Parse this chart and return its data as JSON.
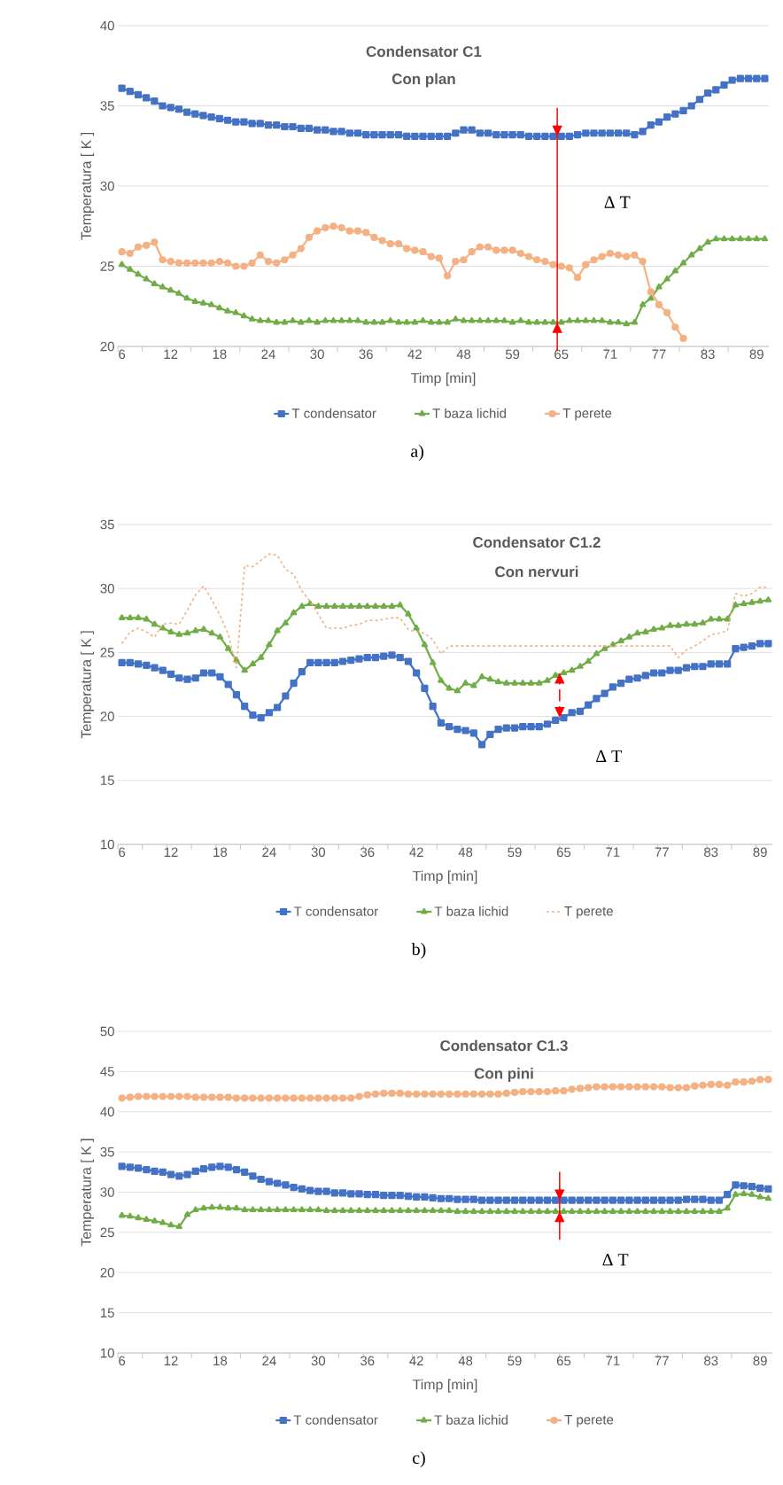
{
  "chart_data": [
    {
      "type": "line",
      "title": "Condensator C1",
      "subtitle": "Con plan",
      "xlabel": "Timp [min]",
      "ylabel": "Temperatura [ K ]",
      "categories": [
        "6",
        null,
        null,
        null,
        null,
        null,
        "12",
        null,
        null,
        null,
        null,
        null,
        "18",
        null,
        null,
        null,
        null,
        null,
        "24",
        null,
        null,
        null,
        null,
        null,
        "30",
        null,
        null,
        null,
        null,
        null,
        "36",
        null,
        null,
        null,
        null,
        null,
        "42",
        null,
        null,
        null,
        null,
        null,
        "48",
        null,
        null,
        null,
        null,
        null,
        "59",
        null,
        null,
        null,
        null,
        null,
        "65",
        null,
        null,
        null,
        null,
        null,
        "71",
        null,
        null,
        null,
        null,
        null,
        "77",
        null,
        null,
        null,
        null,
        null,
        "83",
        null,
        null,
        null,
        null,
        null,
        "89",
        null
      ],
      "ylim": [
        20,
        40
      ],
      "yticks": [
        20,
        25,
        30,
        35,
        40
      ],
      "grid": "y",
      "legend": "bottom",
      "series": [
        {
          "name": "T condensator",
          "color": "#4472c4",
          "marker": "square",
          "values": [
            36.1,
            35.9,
            35.7,
            35.5,
            35.3,
            35.0,
            34.9,
            34.8,
            34.6,
            34.5,
            34.4,
            34.3,
            34.2,
            34.1,
            34.0,
            34.0,
            33.9,
            33.9,
            33.8,
            33.8,
            33.7,
            33.7,
            33.6,
            33.6,
            33.5,
            33.5,
            33.4,
            33.4,
            33.3,
            33.3,
            33.2,
            33.2,
            33.2,
            33.2,
            33.2,
            33.1,
            33.1,
            33.1,
            33.1,
            33.1,
            33.1,
            33.3,
            33.5,
            33.5,
            33.3,
            33.3,
            33.2,
            33.2,
            33.2,
            33.2,
            33.1,
            33.1,
            33.1,
            33.1,
            33.1,
            33.1,
            33.2,
            33.3,
            33.3,
            33.3,
            33.3,
            33.3,
            33.3,
            33.2,
            33.4,
            33.8,
            34.0,
            34.3,
            34.5,
            34.7,
            35.0,
            35.4,
            35.8,
            36.0,
            36.3,
            36.6,
            36.7,
            36.7,
            36.7,
            36.7
          ]
        },
        {
          "name": "T baza lichid",
          "color": "#70ad47",
          "marker": "triangle",
          "values": [
            25.1,
            24.8,
            24.5,
            24.2,
            23.9,
            23.7,
            23.5,
            23.3,
            23.0,
            22.8,
            22.7,
            22.6,
            22.4,
            22.2,
            22.1,
            21.9,
            21.7,
            21.6,
            21.6,
            21.5,
            21.5,
            21.6,
            21.5,
            21.6,
            21.5,
            21.6,
            21.6,
            21.6,
            21.6,
            21.6,
            21.5,
            21.5,
            21.5,
            21.6,
            21.5,
            21.5,
            21.5,
            21.6,
            21.5,
            21.5,
            21.5,
            21.7,
            21.6,
            21.6,
            21.6,
            21.6,
            21.6,
            21.6,
            21.5,
            21.6,
            21.5,
            21.5,
            21.5,
            21.5,
            21.5,
            21.6,
            21.6,
            21.6,
            21.6,
            21.6,
            21.5,
            21.5,
            21.4,
            21.5,
            22.6,
            23.0,
            23.7,
            24.2,
            24.7,
            25.2,
            25.7,
            26.1,
            26.5,
            26.7,
            26.7,
            26.7,
            26.7,
            26.7,
            26.7,
            26.7
          ]
        },
        {
          "name": "T perete",
          "color": "#f4b183",
          "marker": "circle",
          "values": [
            25.9,
            25.8,
            26.2,
            26.3,
            26.5,
            25.4,
            25.3,
            25.2,
            25.2,
            25.2,
            25.2,
            25.2,
            25.3,
            25.2,
            25.0,
            25.0,
            25.2,
            25.7,
            25.3,
            25.2,
            25.4,
            25.7,
            26.1,
            26.8,
            27.2,
            27.4,
            27.5,
            27.4,
            27.2,
            27.2,
            27.1,
            26.8,
            26.6,
            26.4,
            26.4,
            26.1,
            26.0,
            25.9,
            25.6,
            25.5,
            24.4,
            25.3,
            25.4,
            25.9,
            26.2,
            26.2,
            26.0,
            26.0,
            26.0,
            25.8,
            25.6,
            25.4,
            25.3,
            25.1,
            25.0,
            24.9,
            24.3,
            25.1,
            25.4,
            25.6,
            25.8,
            25.7,
            25.6,
            25.7,
            25.3,
            23.4,
            22.6,
            22.1,
            21.2,
            20.5,
            null,
            null,
            null,
            null,
            null,
            null,
            null,
            null,
            null,
            null
          ]
        }
      ],
      "annotations": [
        "Δ T",
        "a)"
      ]
    },
    {
      "type": "line",
      "title": "Condensator C1.2",
      "subtitle": "Con nervuri",
      "xlabel": "Timp [min]",
      "ylabel": "Temperatura [ K ]",
      "categories": [
        "6",
        null,
        null,
        null,
        null,
        null,
        "12",
        null,
        null,
        null,
        null,
        null,
        "18",
        null,
        null,
        null,
        null,
        null,
        "24",
        null,
        null,
        null,
        null,
        null,
        "30",
        null,
        null,
        null,
        null,
        null,
        "36",
        null,
        null,
        null,
        null,
        null,
        "42",
        null,
        null,
        null,
        null,
        null,
        "48",
        null,
        null,
        null,
        null,
        null,
        "59",
        null,
        null,
        null,
        null,
        null,
        "65",
        null,
        null,
        null,
        null,
        null,
        "71",
        null,
        null,
        null,
        null,
        null,
        "77",
        null,
        null,
        null,
        null,
        null,
        "83",
        null,
        null,
        null,
        null,
        null,
        "89",
        null
      ],
      "ylim": [
        10,
        35
      ],
      "yticks": [
        10,
        15,
        20,
        25,
        30,
        35
      ],
      "grid": "y",
      "legend": "bottom",
      "series": [
        {
          "name": "T condensator",
          "color": "#4472c4",
          "marker": "square",
          "values": [
            24.2,
            24.2,
            24.1,
            24.0,
            23.8,
            23.6,
            23.3,
            23.0,
            22.9,
            23.0,
            23.4,
            23.4,
            23.1,
            22.5,
            21.7,
            20.8,
            20.1,
            19.9,
            20.3,
            20.7,
            21.6,
            22.6,
            23.5,
            24.2,
            24.2,
            24.2,
            24.2,
            24.3,
            24.4,
            24.5,
            24.6,
            24.6,
            24.7,
            24.8,
            24.6,
            24.3,
            23.4,
            22.2,
            20.8,
            19.5,
            19.2,
            19.0,
            18.9,
            18.7,
            17.8,
            18.6,
            19.0,
            19.1,
            19.1,
            19.2,
            19.2,
            19.2,
            19.4,
            19.7,
            19.9,
            20.3,
            20.4,
            20.9,
            21.4,
            21.8,
            22.3,
            22.6,
            22.9,
            23.0,
            23.2,
            23.4,
            23.4,
            23.6,
            23.6,
            23.8,
            23.9,
            23.9,
            24.1,
            24.1,
            24.1,
            25.3,
            25.4,
            25.5,
            25.7,
            25.7
          ]
        },
        {
          "name": "T baza lichid",
          "color": "#70ad47",
          "marker": "triangle",
          "values": [
            27.7,
            27.7,
            27.7,
            27.6,
            27.2,
            26.9,
            26.6,
            26.4,
            26.5,
            26.7,
            26.8,
            26.5,
            26.2,
            25.3,
            24.4,
            23.6,
            24.1,
            24.6,
            25.6,
            26.7,
            27.3,
            28.1,
            28.6,
            28.8,
            28.6,
            28.6,
            28.6,
            28.6,
            28.6,
            28.6,
            28.6,
            28.6,
            28.6,
            28.6,
            28.7,
            28.0,
            26.9,
            25.6,
            24.2,
            22.8,
            22.2,
            22.0,
            22.6,
            22.4,
            23.1,
            22.9,
            22.7,
            22.6,
            22.6,
            22.6,
            22.6,
            22.6,
            22.8,
            23.2,
            23.4,
            23.6,
            23.9,
            24.3,
            24.9,
            25.3,
            25.6,
            25.9,
            26.2,
            26.5,
            26.6,
            26.8,
            26.9,
            27.1,
            27.1,
            27.2,
            27.2,
            27.3,
            27.6,
            27.6,
            27.6,
            28.7,
            28.8,
            28.9,
            29.0,
            29.1
          ]
        },
        {
          "name": "T perete",
          "color": "#f4b183",
          "marker": "none",
          "line_style": "dashed",
          "values": [
            25.7,
            26.6,
            26.9,
            26.6,
            26.2,
            27.2,
            27.3,
            27.2,
            28.3,
            29.5,
            30.2,
            29.1,
            27.9,
            26.4,
            23.8,
            31.8,
            31.7,
            32.2,
            32.7,
            32.6,
            31.5,
            31.1,
            29.8,
            29.0,
            28.0,
            26.9,
            26.9,
            26.9,
            27.1,
            27.2,
            27.5,
            27.5,
            27.6,
            27.7,
            27.7,
            26.8,
            26.6,
            26.5,
            26.0,
            24.9,
            25.5,
            25.5,
            25.5,
            25.5,
            25.5,
            25.5,
            25.5,
            25.5,
            25.5,
            25.5,
            25.5,
            25.5,
            25.5,
            25.5,
            25.5,
            25.5,
            25.5,
            25.5,
            25.5,
            25.5,
            25.5,
            25.5,
            25.5,
            25.5,
            25.5,
            25.5,
            25.5,
            25.5,
            24.6,
            25.2,
            25.5,
            25.9,
            26.4,
            26.5,
            26.7,
            29.6,
            29.4,
            29.6,
            30.1,
            30.1
          ]
        }
      ],
      "annotations": [
        "Δ T",
        "b)"
      ]
    },
    {
      "type": "line",
      "title": "Condensator C1.3",
      "subtitle": "Con pini",
      "xlabel": "Timp [min]",
      "ylabel": "Temperatura [ K ]",
      "categories": [
        "6",
        null,
        null,
        null,
        null,
        null,
        "12",
        null,
        null,
        null,
        null,
        null,
        "18",
        null,
        null,
        null,
        null,
        null,
        "24",
        null,
        null,
        null,
        null,
        null,
        "30",
        null,
        null,
        null,
        null,
        null,
        "36",
        null,
        null,
        null,
        null,
        null,
        "42",
        null,
        null,
        null,
        null,
        null,
        "48",
        null,
        null,
        null,
        null,
        null,
        "59",
        null,
        null,
        null,
        null,
        null,
        "65",
        null,
        null,
        null,
        null,
        null,
        "71",
        null,
        null,
        null,
        null,
        null,
        "77",
        null,
        null,
        null,
        null,
        null,
        "83",
        null,
        null,
        null,
        null,
        null,
        "89",
        null
      ],
      "ylim": [
        10,
        50
      ],
      "yticks": [
        10,
        15,
        20,
        25,
        30,
        35,
        40,
        45,
        50
      ],
      "grid": "y",
      "legend": "bottom",
      "series": [
        {
          "name": "T condensator",
          "color": "#4472c4",
          "marker": "square",
          "values": [
            33.2,
            33.1,
            33.0,
            32.8,
            32.6,
            32.5,
            32.2,
            32.0,
            32.2,
            32.6,
            32.9,
            33.1,
            33.2,
            33.1,
            32.8,
            32.5,
            32.0,
            31.6,
            31.3,
            31.1,
            30.9,
            30.6,
            30.4,
            30.2,
            30.1,
            30.1,
            29.9,
            29.9,
            29.8,
            29.8,
            29.7,
            29.7,
            29.6,
            29.6,
            29.6,
            29.5,
            29.4,
            29.4,
            29.3,
            29.2,
            29.2,
            29.1,
            29.1,
            29.1,
            29.0,
            29.0,
            29.0,
            29.0,
            29.0,
            29.0,
            29.0,
            29.0,
            29.0,
            29.0,
            29.0,
            29.0,
            29.0,
            29.0,
            29.0,
            29.0,
            29.0,
            29.0,
            29.0,
            29.0,
            29.0,
            29.0,
            29.0,
            29.0,
            29.0,
            29.1,
            29.1,
            29.1,
            29.0,
            29.0,
            29.7,
            30.9,
            30.8,
            30.7,
            30.5,
            30.4
          ]
        },
        {
          "name": "T baza lichid",
          "color": "#70ad47",
          "marker": "triangle",
          "values": [
            27.1,
            27.0,
            26.8,
            26.6,
            26.4,
            26.2,
            25.9,
            25.7,
            27.2,
            27.8,
            28.0,
            28.1,
            28.1,
            28.0,
            28.0,
            27.8,
            27.8,
            27.8,
            27.8,
            27.8,
            27.8,
            27.8,
            27.8,
            27.8,
            27.8,
            27.7,
            27.7,
            27.7,
            27.7,
            27.7,
            27.7,
            27.7,
            27.7,
            27.7,
            27.7,
            27.7,
            27.7,
            27.7,
            27.7,
            27.7,
            27.7,
            27.6,
            27.6,
            27.6,
            27.6,
            27.6,
            27.6,
            27.6,
            27.6,
            27.6,
            27.6,
            27.6,
            27.6,
            27.6,
            27.6,
            27.6,
            27.6,
            27.6,
            27.6,
            27.6,
            27.6,
            27.6,
            27.6,
            27.6,
            27.6,
            27.6,
            27.6,
            27.6,
            27.6,
            27.6,
            27.6,
            27.6,
            27.6,
            27.6,
            28.0,
            29.7,
            29.8,
            29.7,
            29.4,
            29.2
          ]
        },
        {
          "name": "T perete",
          "color": "#f4b183",
          "marker": "circle",
          "values": [
            41.7,
            41.8,
            41.9,
            41.9,
            41.9,
            41.9,
            41.9,
            41.9,
            41.9,
            41.8,
            41.8,
            41.8,
            41.8,
            41.8,
            41.7,
            41.7,
            41.7,
            41.7,
            41.7,
            41.7,
            41.7,
            41.7,
            41.7,
            41.7,
            41.7,
            41.7,
            41.7,
            41.7,
            41.7,
            41.9,
            42.1,
            42.2,
            42.3,
            42.3,
            42.3,
            42.2,
            42.2,
            42.2,
            42.2,
            42.2,
            42.2,
            42.2,
            42.2,
            42.2,
            42.2,
            42.2,
            42.2,
            42.3,
            42.4,
            42.5,
            42.5,
            42.5,
            42.5,
            42.6,
            42.6,
            42.8,
            42.9,
            43.0,
            43.1,
            43.1,
            43.1,
            43.1,
            43.1,
            43.1,
            43.1,
            43.1,
            43.1,
            43.0,
            43.0,
            43.0,
            43.2,
            43.3,
            43.4,
            43.4,
            43.3,
            43.7,
            43.7,
            43.8,
            44.0,
            44.0
          ]
        }
      ],
      "annotations": [
        "Δ T",
        "c)"
      ]
    }
  ]
}
